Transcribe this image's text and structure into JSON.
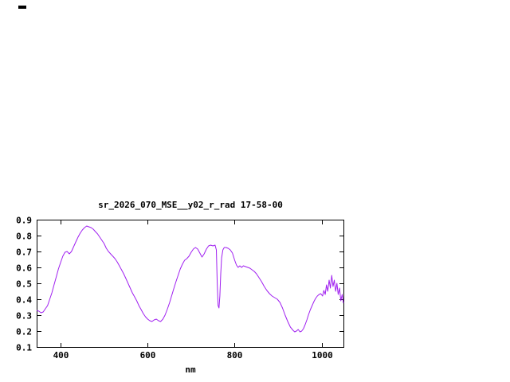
{
  "page": {
    "background": "#ffffff"
  },
  "artifact": {
    "note": "small dark mark at top-left of screen"
  },
  "chart_data": {
    "type": "line",
    "title": "sr_2026_070_MSE__y02_r_rad 17-58-00",
    "xlabel": "nm",
    "ylabel": "",
    "xlim": [
      345,
      1050
    ],
    "ylim": [
      0.1,
      0.9
    ],
    "xticks": [
      400,
      600,
      800,
      1000
    ],
    "yticks": [
      0.1,
      0.2,
      0.3,
      0.4,
      0.5,
      0.6,
      0.7,
      0.8,
      0.9
    ],
    "grid": false,
    "legend": "none",
    "colors": {
      "line": "#a020f0",
      "axis": "#000000",
      "text": "#000000",
      "background": "#ffffff"
    },
    "series": [
      {
        "name": "sr_2026_070_MSE__y02_r_rad",
        "points": [
          [
            345,
            0.33
          ],
          [
            350,
            0.325
          ],
          [
            355,
            0.315
          ],
          [
            360,
            0.32
          ],
          [
            365,
            0.34
          ],
          [
            370,
            0.36
          ],
          [
            375,
            0.4
          ],
          [
            380,
            0.44
          ],
          [
            385,
            0.49
          ],
          [
            390,
            0.54
          ],
          [
            395,
            0.59
          ],
          [
            400,
            0.63
          ],
          [
            405,
            0.67
          ],
          [
            410,
            0.695
          ],
          [
            415,
            0.7
          ],
          [
            420,
            0.685
          ],
          [
            425,
            0.7
          ],
          [
            430,
            0.73
          ],
          [
            435,
            0.76
          ],
          [
            440,
            0.79
          ],
          [
            445,
            0.815
          ],
          [
            450,
            0.835
          ],
          [
            455,
            0.85
          ],
          [
            460,
            0.86
          ],
          [
            465,
            0.855
          ],
          [
            470,
            0.85
          ],
          [
            475,
            0.84
          ],
          [
            480,
            0.825
          ],
          [
            485,
            0.81
          ],
          [
            490,
            0.79
          ],
          [
            495,
            0.77
          ],
          [
            500,
            0.75
          ],
          [
            505,
            0.72
          ],
          [
            510,
            0.7
          ],
          [
            515,
            0.685
          ],
          [
            520,
            0.67
          ],
          [
            525,
            0.655
          ],
          [
            530,
            0.635
          ],
          [
            535,
            0.61
          ],
          [
            540,
            0.585
          ],
          [
            545,
            0.56
          ],
          [
            550,
            0.53
          ],
          [
            555,
            0.5
          ],
          [
            560,
            0.47
          ],
          [
            565,
            0.44
          ],
          [
            570,
            0.415
          ],
          [
            575,
            0.39
          ],
          [
            580,
            0.36
          ],
          [
            585,
            0.335
          ],
          [
            590,
            0.31
          ],
          [
            595,
            0.29
          ],
          [
            600,
            0.275
          ],
          [
            605,
            0.265
          ],
          [
            610,
            0.26
          ],
          [
            615,
            0.27
          ],
          [
            620,
            0.275
          ],
          [
            625,
            0.265
          ],
          [
            630,
            0.26
          ],
          [
            635,
            0.275
          ],
          [
            640,
            0.3
          ],
          [
            645,
            0.335
          ],
          [
            650,
            0.375
          ],
          [
            655,
            0.42
          ],
          [
            660,
            0.465
          ],
          [
            665,
            0.51
          ],
          [
            670,
            0.55
          ],
          [
            675,
            0.59
          ],
          [
            680,
            0.62
          ],
          [
            685,
            0.645
          ],
          [
            690,
            0.655
          ],
          [
            695,
            0.67
          ],
          [
            700,
            0.695
          ],
          [
            705,
            0.715
          ],
          [
            710,
            0.725
          ],
          [
            715,
            0.715
          ],
          [
            720,
            0.69
          ],
          [
            725,
            0.665
          ],
          [
            730,
            0.685
          ],
          [
            735,
            0.715
          ],
          [
            740,
            0.735
          ],
          [
            745,
            0.74
          ],
          [
            750,
            0.735
          ],
          [
            755,
            0.74
          ],
          [
            758,
            0.71
          ],
          [
            760,
            0.5
          ],
          [
            762,
            0.36
          ],
          [
            764,
            0.345
          ],
          [
            766,
            0.42
          ],
          [
            768,
            0.56
          ],
          [
            770,
            0.66
          ],
          [
            773,
            0.71
          ],
          [
            776,
            0.725
          ],
          [
            780,
            0.725
          ],
          [
            785,
            0.72
          ],
          [
            790,
            0.71
          ],
          [
            795,
            0.69
          ],
          [
            800,
            0.645
          ],
          [
            804,
            0.615
          ],
          [
            808,
            0.6
          ],
          [
            812,
            0.61
          ],
          [
            816,
            0.6
          ],
          [
            820,
            0.61
          ],
          [
            825,
            0.605
          ],
          [
            830,
            0.6
          ],
          [
            835,
            0.595
          ],
          [
            840,
            0.585
          ],
          [
            845,
            0.575
          ],
          [
            850,
            0.56
          ],
          [
            856,
            0.535
          ],
          [
            862,
            0.51
          ],
          [
            868,
            0.48
          ],
          [
            874,
            0.455
          ],
          [
            880,
            0.435
          ],
          [
            886,
            0.42
          ],
          [
            892,
            0.41
          ],
          [
            898,
            0.4
          ],
          [
            904,
            0.38
          ],
          [
            910,
            0.345
          ],
          [
            916,
            0.3
          ],
          [
            922,
            0.26
          ],
          [
            928,
            0.225
          ],
          [
            934,
            0.205
          ],
          [
            938,
            0.195
          ],
          [
            942,
            0.2
          ],
          [
            946,
            0.21
          ],
          [
            950,
            0.195
          ],
          [
            954,
            0.2
          ],
          [
            958,
            0.215
          ],
          [
            962,
            0.24
          ],
          [
            966,
            0.27
          ],
          [
            970,
            0.305
          ],
          [
            974,
            0.335
          ],
          [
            978,
            0.36
          ],
          [
            982,
            0.385
          ],
          [
            986,
            0.405
          ],
          [
            990,
            0.42
          ],
          [
            994,
            0.43
          ],
          [
            998,
            0.435
          ],
          [
            1002,
            0.42
          ],
          [
            1005,
            0.455
          ],
          [
            1008,
            0.43
          ],
          [
            1011,
            0.49
          ],
          [
            1014,
            0.45
          ],
          [
            1017,
            0.52
          ],
          [
            1020,
            0.47
          ],
          [
            1023,
            0.55
          ],
          [
            1026,
            0.48
          ],
          [
            1029,
            0.52
          ],
          [
            1032,
            0.45
          ],
          [
            1035,
            0.5
          ],
          [
            1038,
            0.43
          ],
          [
            1041,
            0.47
          ],
          [
            1044,
            0.39
          ],
          [
            1047,
            0.43
          ],
          [
            1050,
            0.375
          ]
        ]
      }
    ]
  }
}
